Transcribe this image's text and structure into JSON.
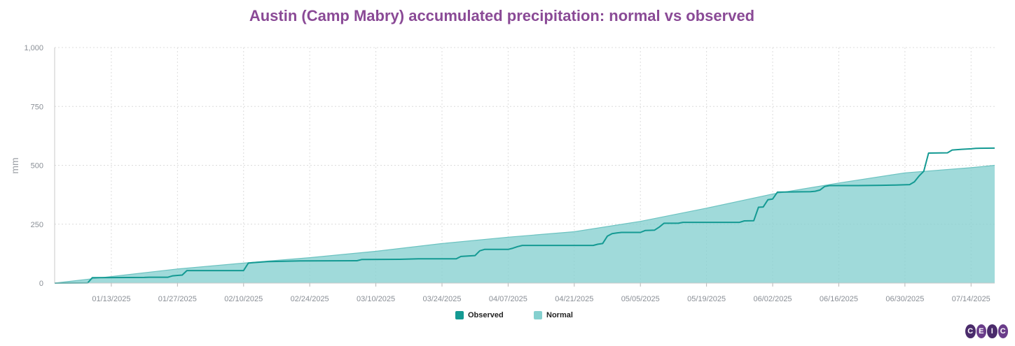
{
  "chart_data": {
    "type": "area",
    "title": "Austin (Camp Mabry) accumulated precipitation: normal vs observed",
    "ylabel": "mm",
    "xlabel": "",
    "ylim": [
      0,
      1000
    ],
    "xlim": [
      "2025-01-01",
      "2025-07-19"
    ],
    "y_ticks": [
      0,
      250,
      500,
      750,
      1000
    ],
    "y_tick_labels": [
      "0",
      "250",
      "500",
      "750",
      "1,000"
    ],
    "x_ticks": [
      "2025-01-13",
      "2025-01-27",
      "2025-02-10",
      "2025-02-24",
      "2025-03-10",
      "2025-03-24",
      "2025-04-07",
      "2025-04-21",
      "2025-05-05",
      "2025-05-19",
      "2025-06-02",
      "2025-06-16",
      "2025-06-30",
      "2025-07-14"
    ],
    "x_tick_labels": [
      "01/13/2025",
      "01/27/2025",
      "02/10/2025",
      "02/24/2025",
      "03/10/2025",
      "03/24/2025",
      "04/07/2025",
      "04/21/2025",
      "05/05/2025",
      "05/19/2025",
      "06/02/2025",
      "06/16/2025",
      "06/30/2025",
      "07/14/2025"
    ],
    "grid": true,
    "legend_position": "bottom-center",
    "series": [
      {
        "name": "Observed",
        "render": "line",
        "color": "#149a93",
        "points": [
          [
            "2025-01-01",
            0
          ],
          [
            "2025-01-08",
            1
          ],
          [
            "2025-01-09",
            23
          ],
          [
            "2025-01-20",
            24
          ],
          [
            "2025-01-21",
            25
          ],
          [
            "2025-01-25",
            25
          ],
          [
            "2025-01-26",
            31
          ],
          [
            "2025-01-28",
            34
          ],
          [
            "2025-01-29",
            53
          ],
          [
            "2025-02-10",
            53
          ],
          [
            "2025-02-11",
            85
          ],
          [
            "2025-02-12",
            87
          ],
          [
            "2025-02-15",
            91
          ],
          [
            "2025-02-17",
            92
          ],
          [
            "2025-02-22",
            94
          ],
          [
            "2025-03-06",
            95
          ],
          [
            "2025-03-07",
            100
          ],
          [
            "2025-03-15",
            101
          ],
          [
            "2025-03-19",
            103
          ],
          [
            "2025-03-27",
            103
          ],
          [
            "2025-03-28",
            113
          ],
          [
            "2025-03-31",
            117
          ],
          [
            "2025-04-01",
            137
          ],
          [
            "2025-04-02",
            143
          ],
          [
            "2025-04-07",
            143
          ],
          [
            "2025-04-08",
            148
          ],
          [
            "2025-04-09",
            155
          ],
          [
            "2025-04-10",
            160
          ],
          [
            "2025-04-25",
            160
          ],
          [
            "2025-04-26",
            165
          ],
          [
            "2025-04-27",
            168
          ],
          [
            "2025-04-28",
            199
          ],
          [
            "2025-04-29",
            210
          ],
          [
            "2025-04-30",
            213
          ],
          [
            "2025-05-01",
            215
          ],
          [
            "2025-05-05",
            215
          ],
          [
            "2025-05-06",
            223
          ],
          [
            "2025-05-08",
            225
          ],
          [
            "2025-05-09",
            238
          ],
          [
            "2025-05-10",
            254
          ],
          [
            "2025-05-13",
            254
          ],
          [
            "2025-05-14",
            258
          ],
          [
            "2025-05-26",
            258
          ],
          [
            "2025-05-27",
            264
          ],
          [
            "2025-05-29",
            265
          ],
          [
            "2025-05-30",
            322
          ],
          [
            "2025-05-31",
            323
          ],
          [
            "2025-06-01",
            354
          ],
          [
            "2025-06-02",
            357
          ],
          [
            "2025-06-03",
            386
          ],
          [
            "2025-06-10",
            388
          ],
          [
            "2025-06-11",
            390
          ],
          [
            "2025-06-12",
            395
          ],
          [
            "2025-06-13",
            410
          ],
          [
            "2025-06-14",
            414
          ],
          [
            "2025-06-20",
            414
          ],
          [
            "2025-06-25",
            415
          ],
          [
            "2025-06-28",
            416
          ],
          [
            "2025-07-01",
            418
          ],
          [
            "2025-07-02",
            430
          ],
          [
            "2025-07-03",
            455
          ],
          [
            "2025-07-04",
            475
          ],
          [
            "2025-07-05",
            552
          ],
          [
            "2025-07-09",
            553
          ],
          [
            "2025-07-10",
            565
          ],
          [
            "2025-07-12",
            568
          ],
          [
            "2025-07-14",
            570
          ],
          [
            "2025-07-15",
            572
          ],
          [
            "2025-07-19",
            573
          ]
        ]
      },
      {
        "name": "Normal",
        "render": "area",
        "color": "#85d0cf",
        "points": [
          [
            "2025-01-01",
            0
          ],
          [
            "2025-01-13",
            28
          ],
          [
            "2025-01-27",
            60
          ],
          [
            "2025-02-10",
            85
          ],
          [
            "2025-02-24",
            108
          ],
          [
            "2025-03-10",
            135
          ],
          [
            "2025-03-24",
            168
          ],
          [
            "2025-04-07",
            195
          ],
          [
            "2025-04-21",
            218
          ],
          [
            "2025-05-05",
            262
          ],
          [
            "2025-05-19",
            318
          ],
          [
            "2025-06-02",
            378
          ],
          [
            "2025-06-16",
            425
          ],
          [
            "2025-06-30",
            468
          ],
          [
            "2025-07-14",
            490
          ],
          [
            "2025-07-19",
            500
          ]
        ]
      }
    ]
  },
  "legend": {
    "items": [
      {
        "label": "Observed",
        "color": "#149a93"
      },
      {
        "label": "Normal",
        "color": "#85d0cf"
      }
    ]
  },
  "logo": {
    "letters": [
      "C",
      "E",
      "I",
      "C"
    ],
    "colors": [
      "#4a2b6b",
      "#6a3d8a",
      "#4a2b6b",
      "#6a3d8a"
    ]
  }
}
